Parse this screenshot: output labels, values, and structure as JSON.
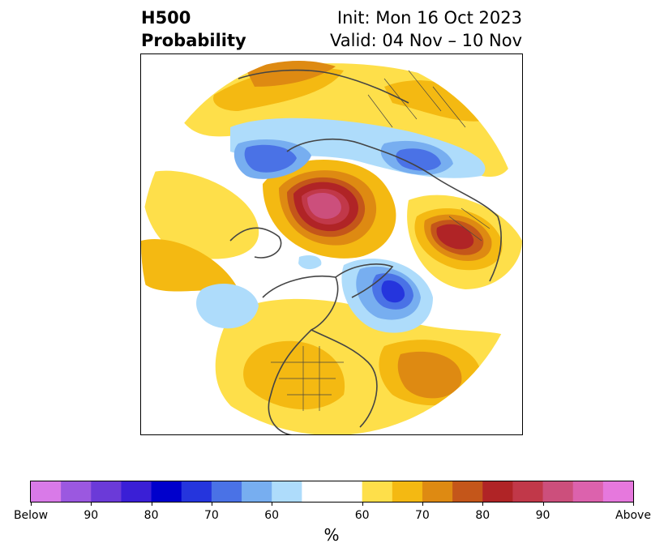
{
  "title": {
    "left_line1": "H500",
    "left_line2": "Probability",
    "right_line1": "Init: Mon 16 Oct 2023",
    "right_line2": "Valid: 04 Nov – 10 Nov"
  },
  "colorbar": {
    "unit": "%",
    "colors": [
      "#d97ae8",
      "#9b58e0",
      "#6b3ad8",
      "#3a1fd6",
      "#0000cc",
      "#2535dd",
      "#4a72e6",
      "#77aef0",
      "#aedcfb",
      "#ffffff",
      "#fedf4a",
      "#f4b912",
      "#de8a12",
      "#c4561a",
      "#b02426",
      "#c13849",
      "#cc4f7c",
      "#dc62ad",
      "#e678dd"
    ],
    "ticks": [
      "Below",
      "90",
      "80",
      "70",
      "60",
      "60",
      "70",
      "80",
      "90",
      "Above"
    ]
  }
}
